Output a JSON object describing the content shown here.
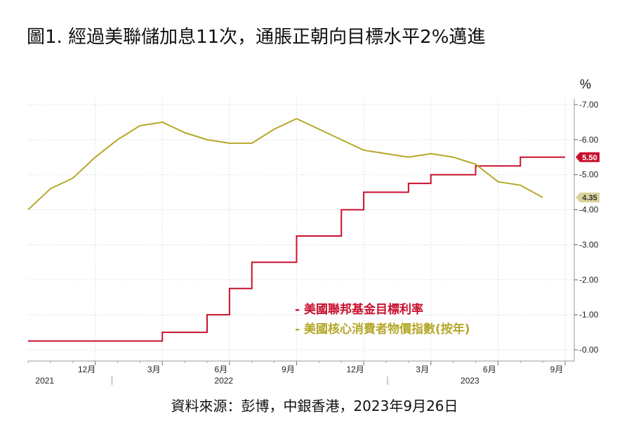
{
  "title": "圖1. 經過美聯儲加息11次，通脹正朝向目標水平2%邁進",
  "source": "資料來源：彭博，中銀香港，2023年9月26日",
  "chart_data": {
    "type": "line",
    "unit": "%",
    "ylim": [
      0,
      7
    ],
    "yticks": [
      "0.00",
      "1.00",
      "2.00",
      "3.00",
      "4.00",
      "5.00",
      "6.00",
      "7.00"
    ],
    "month_ticks": [
      "12月",
      "3月",
      "6月",
      "9月",
      "12月",
      "3月",
      "6月",
      "9月"
    ],
    "year_labels": [
      "2021",
      "2022",
      "2023"
    ],
    "legend": [
      "- 美國聯邦基金目標利率",
      "- 美國核心消費者物價指數(按年)"
    ],
    "colors": {
      "fed": "#c8102e",
      "cpi": "#b5a82a"
    },
    "x_range": [
      "2021-09",
      "2023-09"
    ],
    "series": [
      {
        "name": "美國聯邦基金目標利率",
        "type": "step",
        "end_label": "5.50",
        "points": [
          {
            "x": "2021-09",
            "y": 0.25
          },
          {
            "x": "2022-03",
            "y": 0.5
          },
          {
            "x": "2022-05",
            "y": 1.0
          },
          {
            "x": "2022-06",
            "y": 1.75
          },
          {
            "x": "2022-07",
            "y": 2.5
          },
          {
            "x": "2022-09",
            "y": 3.25
          },
          {
            "x": "2022-11",
            "y": 4.0
          },
          {
            "x": "2022-12",
            "y": 4.5
          },
          {
            "x": "2023-02",
            "y": 4.75
          },
          {
            "x": "2023-03",
            "y": 5.0
          },
          {
            "x": "2023-05",
            "y": 5.25
          },
          {
            "x": "2023-07",
            "y": 5.5
          },
          {
            "x": "2023-09",
            "y": 5.5
          }
        ]
      },
      {
        "name": "美國核心消費者物價指數(按年)",
        "type": "line",
        "end_label": "4.35",
        "points": [
          {
            "x": "2021-09",
            "y": 4.0
          },
          {
            "x": "2021-10",
            "y": 4.6
          },
          {
            "x": "2021-11",
            "y": 4.9
          },
          {
            "x": "2021-12",
            "y": 5.5
          },
          {
            "x": "2022-01",
            "y": 6.0
          },
          {
            "x": "2022-02",
            "y": 6.4
          },
          {
            "x": "2022-03",
            "y": 6.5
          },
          {
            "x": "2022-04",
            "y": 6.2
          },
          {
            "x": "2022-05",
            "y": 6.0
          },
          {
            "x": "2022-06",
            "y": 5.9
          },
          {
            "x": "2022-07",
            "y": 5.9
          },
          {
            "x": "2022-08",
            "y": 6.3
          },
          {
            "x": "2022-09",
            "y": 6.6
          },
          {
            "x": "2022-10",
            "y": 6.3
          },
          {
            "x": "2022-11",
            "y": 6.0
          },
          {
            "x": "2022-12",
            "y": 5.7
          },
          {
            "x": "2023-01",
            "y": 5.6
          },
          {
            "x": "2023-02",
            "y": 5.5
          },
          {
            "x": "2023-03",
            "y": 5.6
          },
          {
            "x": "2023-04",
            "y": 5.5
          },
          {
            "x": "2023-05",
            "y": 5.3
          },
          {
            "x": "2023-06",
            "y": 4.8
          },
          {
            "x": "2023-07",
            "y": 4.7
          },
          {
            "x": "2023-08",
            "y": 4.35
          }
        ]
      }
    ]
  }
}
